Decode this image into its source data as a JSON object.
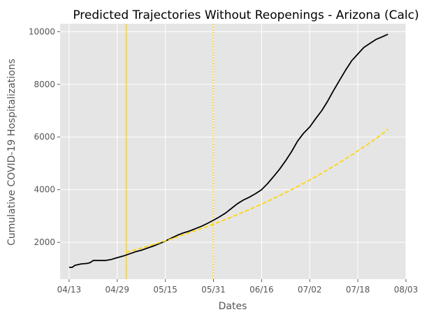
{
  "chart_data": {
    "type": "line",
    "title": "Predicted Trajectories Without Reopenings - Arizona (Calc)",
    "xlabel": "Dates",
    "ylabel": "Cumulative COVID-19 Hospitalizations",
    "x_ticks": [
      "04/13",
      "04/29",
      "05/15",
      "05/31",
      "06/16",
      "07/02",
      "07/18",
      "08/03"
    ],
    "y_ticks": [
      2000,
      4000,
      6000,
      8000,
      10000
    ],
    "xlim": [
      "2020-04-10",
      "2020-08-03"
    ],
    "ylim": [
      600,
      10300
    ],
    "grid": true,
    "background": "#e5e5e5",
    "vlines": [
      {
        "x": "2020-05-02",
        "style": "solid",
        "color": "#ffd700"
      },
      {
        "x": "2020-05-31",
        "style": "dotted",
        "color": "#ffd700"
      }
    ],
    "series": [
      {
        "style": "solid",
        "color": "#000000",
        "points": [
          [
            "2020-04-13",
            1050
          ],
          [
            "2020-04-14",
            1050
          ],
          [
            "2020-04-15",
            1130
          ],
          [
            "2020-04-17",
            1180
          ],
          [
            "2020-04-19",
            1200
          ],
          [
            "2020-04-20",
            1230
          ],
          [
            "2020-04-21",
            1310
          ],
          [
            "2020-04-23",
            1310
          ],
          [
            "2020-04-25",
            1310
          ],
          [
            "2020-04-27",
            1350
          ],
          [
            "2020-04-29",
            1420
          ],
          [
            "2020-05-01",
            1480
          ],
          [
            "2020-05-03",
            1560
          ],
          [
            "2020-05-05",
            1640
          ],
          [
            "2020-05-07",
            1700
          ],
          [
            "2020-05-09",
            1780
          ],
          [
            "2020-05-11",
            1860
          ],
          [
            "2020-05-13",
            1950
          ],
          [
            "2020-05-15",
            2050
          ],
          [
            "2020-05-17",
            2160
          ],
          [
            "2020-05-19",
            2270
          ],
          [
            "2020-05-21",
            2360
          ],
          [
            "2020-05-23",
            2430
          ],
          [
            "2020-05-25",
            2520
          ],
          [
            "2020-05-27",
            2610
          ],
          [
            "2020-05-29",
            2720
          ],
          [
            "2020-05-31",
            2840
          ],
          [
            "2020-06-02",
            2970
          ],
          [
            "2020-06-04",
            3110
          ],
          [
            "2020-06-06",
            3290
          ],
          [
            "2020-06-08",
            3470
          ],
          [
            "2020-06-10",
            3610
          ],
          [
            "2020-06-12",
            3720
          ],
          [
            "2020-06-14",
            3850
          ],
          [
            "2020-06-16",
            4000
          ],
          [
            "2020-06-18",
            4230
          ],
          [
            "2020-06-20",
            4500
          ],
          [
            "2020-06-22",
            4780
          ],
          [
            "2020-06-24",
            5100
          ],
          [
            "2020-06-26",
            5450
          ],
          [
            "2020-06-28",
            5850
          ],
          [
            "2020-06-30",
            6150
          ],
          [
            "2020-07-02",
            6380
          ],
          [
            "2020-07-04",
            6700
          ],
          [
            "2020-07-06",
            7000
          ],
          [
            "2020-07-08",
            7370
          ],
          [
            "2020-07-10",
            7780
          ],
          [
            "2020-07-12",
            8170
          ],
          [
            "2020-07-14",
            8550
          ],
          [
            "2020-07-16",
            8900
          ],
          [
            "2020-07-18",
            9150
          ],
          [
            "2020-07-20",
            9400
          ],
          [
            "2020-07-22",
            9550
          ],
          [
            "2020-07-24",
            9700
          ],
          [
            "2020-07-26",
            9800
          ],
          [
            "2020-07-28",
            9900
          ]
        ]
      },
      {
        "style": "dashed",
        "color": "#ffd700",
        "points": [
          [
            "2020-05-02",
            1620
          ],
          [
            "2020-05-07",
            1780
          ],
          [
            "2020-05-12",
            1950
          ],
          [
            "2020-05-17",
            2130
          ],
          [
            "2020-05-22",
            2320
          ],
          [
            "2020-05-27",
            2520
          ],
          [
            "2020-06-01",
            2730
          ],
          [
            "2020-06-06",
            2960
          ],
          [
            "2020-06-11",
            3200
          ],
          [
            "2020-06-16",
            3450
          ],
          [
            "2020-06-21",
            3720
          ],
          [
            "2020-06-26",
            4000
          ],
          [
            "2020-07-01",
            4300
          ],
          [
            "2020-07-06",
            4620
          ],
          [
            "2020-07-11",
            4960
          ],
          [
            "2020-07-16",
            5320
          ],
          [
            "2020-07-21",
            5700
          ],
          [
            "2020-07-26",
            6100
          ],
          [
            "2020-07-28",
            6300
          ]
        ]
      }
    ]
  }
}
